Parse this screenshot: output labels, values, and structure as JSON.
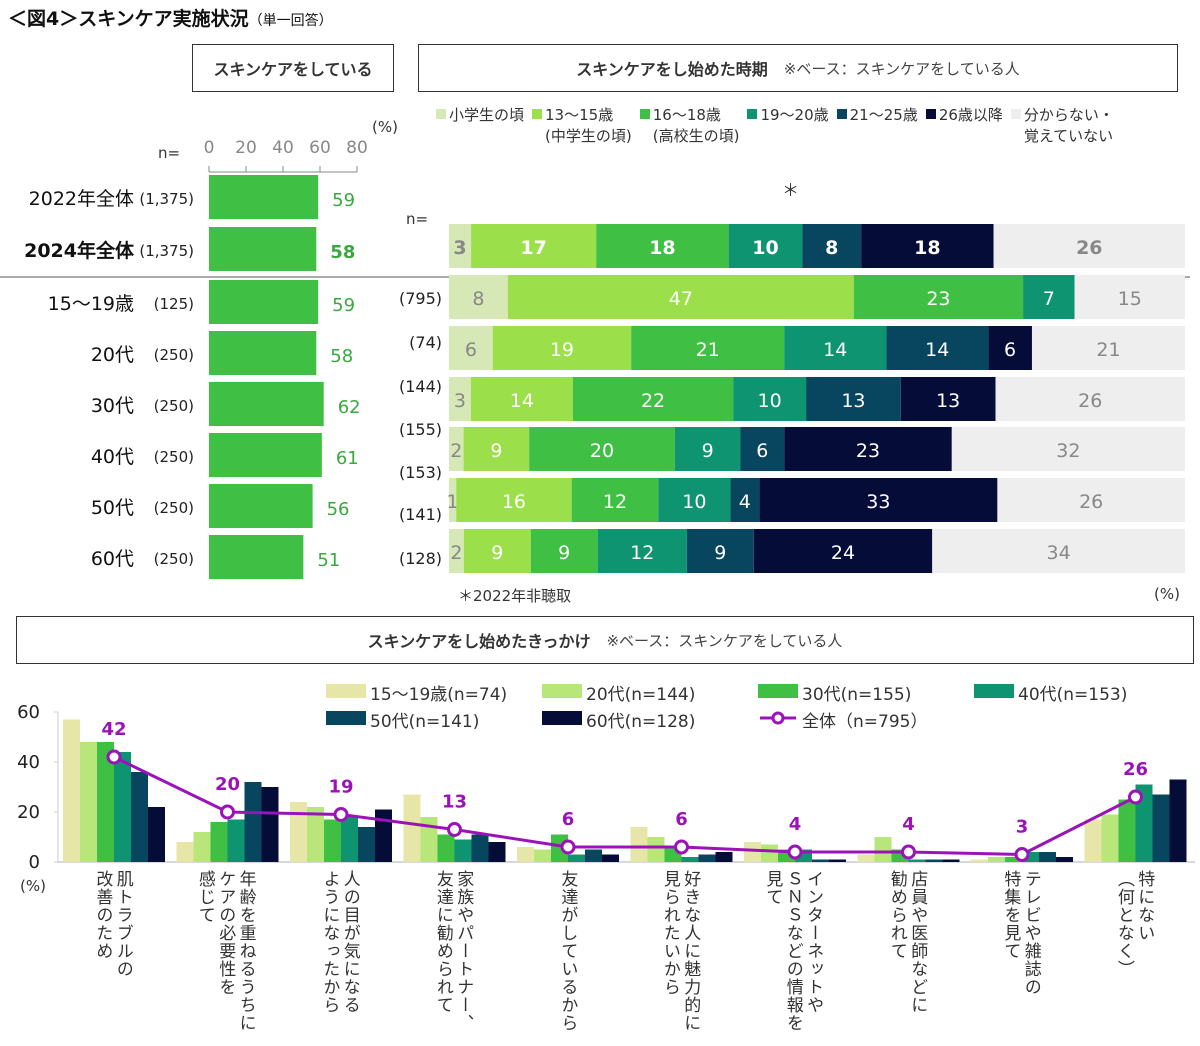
{
  "figure_title": "＜図4＞スキンケア実施状況",
  "figure_subtitle": "（単一回答）",
  "colors": {
    "bar_green": "#3fbf44",
    "value_green": "#3aa83f",
    "line_purple": "#9b13b8",
    "stack": [
      "#d5e8b5",
      "#9be04a",
      "#3fbf44",
      "#0e9470",
      "#08465f",
      "#050c38",
      "#eeeeee"
    ],
    "group": [
      "#e6e6a8",
      "#b8e67a",
      "#3fbf44",
      "#0e9470",
      "#08465f",
      "#050c38"
    ]
  },
  "chart_data": [
    {
      "id": "doing",
      "type": "bar",
      "orientation": "horizontal",
      "title": "スキンケアをしている",
      "n_label": "n=",
      "unit_label": "(%)",
      "xlim": [
        0,
        80
      ],
      "ticks": [
        "0",
        "20",
        "40",
        "60",
        "80"
      ],
      "categories": [
        {
          "label": "2022年全体",
          "n": "(1,375)",
          "value": 59,
          "bold": false
        },
        {
          "label": "2024年全体",
          "n": "(1,375)",
          "value": 58,
          "bold": true
        },
        {
          "label": "15～19歳",
          "n": "(125)",
          "value": 59,
          "bold": false
        },
        {
          "label": "20代",
          "n": "(250)",
          "value": 58,
          "bold": false
        },
        {
          "label": "30代",
          "n": "(250)",
          "value": 62,
          "bold": false
        },
        {
          "label": "40代",
          "n": "(250)",
          "value": 61,
          "bold": false
        },
        {
          "label": "50代",
          "n": "(250)",
          "value": 56,
          "bold": false
        },
        {
          "label": "60代",
          "n": "(250)",
          "value": 51,
          "bold": false
        }
      ]
    },
    {
      "id": "start_timing",
      "type": "bar",
      "orientation": "horizontal-stacked-100",
      "title": "スキンケアをし始めた時期",
      "note": "※ベース：スキンケアをしている人",
      "n_label": "n=",
      "asterisk": "＊",
      "footnote": "＊2022年非聴取",
      "unit_label": "(%)",
      "legend": [
        {
          "label": "小学生の頃",
          "label2": ""
        },
        {
          "label": "13～15歳",
          "label2": "(中学生の頃)"
        },
        {
          "label": "16～18歳",
          "label2": "(高校生の頃)"
        },
        {
          "label": "19～20歳",
          "label2": ""
        },
        {
          "label": "21～25歳",
          "label2": ""
        },
        {
          "label": "26歳以降",
          "label2": ""
        },
        {
          "label": "分からない・",
          "label2": "覚えていない"
        }
      ],
      "n_values_shown": [
        "(795)",
        "(74)",
        "(144)",
        "(155)",
        "(153)",
        "(141)",
        "(128)"
      ],
      "rows": [
        {
          "row": "2024年全体",
          "values": [
            3,
            17,
            18,
            10,
            8,
            18,
            26
          ],
          "bold": true
        },
        {
          "row": "15～19歳",
          "values": [
            8,
            47,
            23,
            7,
            0,
            0,
            15
          ],
          "bold": false
        },
        {
          "row": "20代",
          "values": [
            6,
            19,
            21,
            14,
            14,
            6,
            21
          ],
          "bold": false
        },
        {
          "row": "30代",
          "values": [
            3,
            14,
            22,
            10,
            13,
            13,
            26
          ],
          "bold": false
        },
        {
          "row": "40代",
          "values": [
            2,
            9,
            20,
            9,
            6,
            23,
            32
          ],
          "bold": false
        },
        {
          "row": "50代",
          "values": [
            1,
            16,
            12,
            10,
            4,
            33,
            26
          ],
          "bold": false
        },
        {
          "row": "60代",
          "values": [
            2,
            9,
            9,
            12,
            9,
            24,
            34
          ],
          "bold": false
        }
      ]
    },
    {
      "id": "trigger",
      "type": "bar",
      "subtype": "grouped-bar-with-line",
      "title": "スキンケアをし始めたきっかけ",
      "note": "※ベース：スキンケアをしている人",
      "ylabel": "(%)",
      "ylim": [
        0,
        60
      ],
      "yticks": [
        "0",
        "20",
        "40",
        "60"
      ],
      "categories": [
        "肌トラブルの\n改善のため",
        "年齢を重ねるうちに\nケアの必要性を\n感じて",
        "人の目が気になる\nようになったから",
        "家族やパートナー、\n友達に勧められて",
        "友達がしているから",
        "好きな人に魅力的に\n見られたいから",
        "インターネットや\nＳＮＳなどの情報を\n見て",
        "店員や医師などに\n勧められて",
        "テレビや雑誌の\n特集を見て",
        "特にない\n（何となく）"
      ],
      "series": [
        {
          "name": "15～19歳(n=74)",
          "values": [
            57,
            8,
            24,
            27,
            6,
            14,
            8,
            3,
            1,
            17
          ]
        },
        {
          "name": "20代(n=144)",
          "values": [
            48,
            12,
            22,
            18,
            5,
            10,
            7,
            10,
            2,
            19
          ]
        },
        {
          "name": "30代(n=155)",
          "values": [
            48,
            16,
            17,
            11,
            11,
            6,
            5,
            5,
            2,
            25
          ]
        },
        {
          "name": "40代(n=153)",
          "values": [
            44,
            17,
            18,
            9,
            3,
            2,
            5,
            1,
            4,
            31
          ]
        },
        {
          "name": "50代(n=141)",
          "values": [
            36,
            32,
            14,
            11,
            5,
            3,
            1,
            1,
            4,
            27
          ]
        },
        {
          "name": "60代(n=128)",
          "values": [
            22,
            30,
            21,
            8,
            3,
            4,
            1,
            1,
            2,
            33
          ]
        }
      ],
      "line": {
        "name": "全体（n=795）",
        "values": [
          42,
          20,
          19,
          13,
          6,
          6,
          4,
          4,
          3,
          26
        ]
      }
    }
  ]
}
